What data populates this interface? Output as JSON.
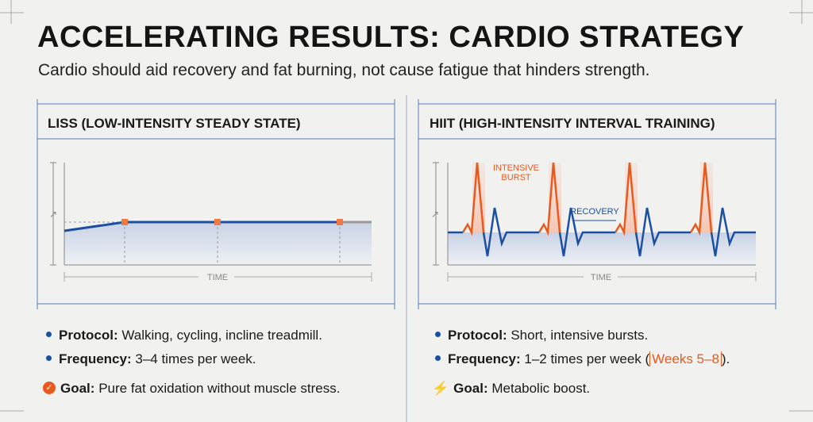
{
  "title": "ACCELERATING RESULTS: CARDIO STRATEGY",
  "subtitle": "Cardio should aid recovery and fat burning, not cause fatigue that hinders strength.",
  "colors": {
    "accent": "#e85a1d",
    "line": "#1b4fa0",
    "grid": "#5b7fc0"
  },
  "liss": {
    "heading": "LISS (LOW-INTENSITY STEADY STATE)",
    "axis_label": "TIME",
    "bullets": [
      {
        "icon": "bullet-dot",
        "label": "Protocol:",
        "text": "Walking, cycling, incline treadmill."
      },
      {
        "icon": "bullet-dot",
        "label": "Frequency:",
        "text": "3–4 times per week."
      },
      {
        "icon": "check-circle-icon",
        "label": "Goal:",
        "text": "Pure fat oxidation without muscle stress."
      }
    ]
  },
  "hiit": {
    "heading": "HIIT (HIGH-INTENSITY INTERVAL TRAINING)",
    "axis_label": "TIME",
    "burst_label_1": "INTENSIVE",
    "burst_label_2": "BURST",
    "recovery_label": "RECOVERY",
    "bullets": [
      {
        "icon": "bullet-dot",
        "label": "Protocol:",
        "text": "Short, intensive bursts."
      },
      {
        "icon": "bullet-dot",
        "label": "Frequency:",
        "text": "1–2 times per week (",
        "highlight": "Weeks 5–8",
        "suffix": ")."
      },
      {
        "icon": "lightning-icon",
        "label": "Goal:",
        "text": "Metabolic boost."
      }
    ]
  }
}
